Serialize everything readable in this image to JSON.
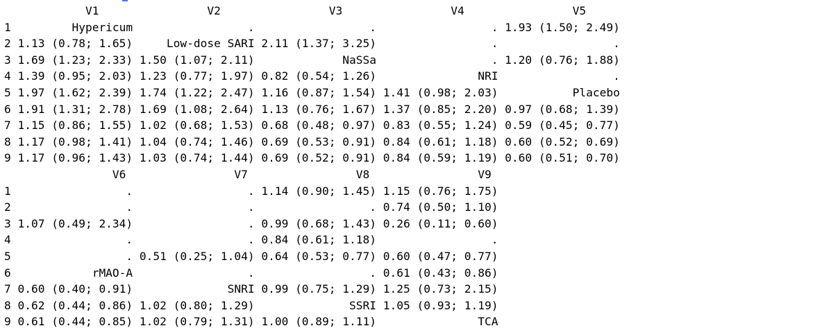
{
  "console": {
    "blocks": [
      {
        "header": "            V1                V2                V3                V4                V5",
        "rows": [
          "1         Hypericum                 .                 .                 . 1.93 (1.50; 2.49)",
          "2 1.13 (0.78; 1.65)     Low-dose SARI 2.11 (1.37; 3.25)                 .                 .",
          "3 1.69 (1.23; 2.33) 1.50 (1.07; 2.11)             NaSSa                 . 1.20 (0.76; 1.88)",
          "4 1.39 (0.95; 2.03) 1.23 (0.77; 1.97) 0.82 (0.54; 1.26)               NRI                 .",
          "5 1.97 (1.62; 2.39) 1.74 (1.22; 2.47) 1.16 (0.87; 1.54) 1.41 (0.98; 2.03)           Placebo",
          "6 1.91 (1.31; 2.78) 1.69 (1.08; 2.64) 1.13 (0.76; 1.67) 1.37 (0.85; 2.20) 0.97 (0.68; 1.39)",
          "7 1.15 (0.86; 1.55) 1.02 (0.68; 1.53) 0.68 (0.48; 0.97) 0.83 (0.55; 1.24) 0.59 (0.45; 0.77)",
          "8 1.17 (0.98; 1.41) 1.04 (0.74; 1.46) 0.69 (0.53; 0.91) 0.84 (0.61; 1.18) 0.60 (0.52; 0.69)",
          "9 1.17 (0.96; 1.43) 1.03 (0.74; 1.44) 0.69 (0.52; 0.91) 0.84 (0.59; 1.19) 0.60 (0.51; 0.70)"
        ]
      },
      {
        "header": "                V6                V7                V8                V9",
        "rows": [
          "1                 .                 . 1.14 (0.90; 1.45) 1.15 (0.76; 1.75)",
          "2                 .                 .                 . 0.74 (0.50; 1.10)",
          "3 1.07 (0.49; 2.34)                 . 0.99 (0.68; 1.43) 0.26 (0.11; 0.60)",
          "4                 .                 . 0.84 (0.61; 1.18)                 .",
          "5                 . 0.51 (0.25; 1.04) 0.64 (0.53; 0.77) 0.60 (0.47; 0.77)",
          "6            rMAO-A                 .                 . 0.61 (0.43; 0.86)",
          "7 0.60 (0.40; 0.91)              SNRI 0.99 (0.75; 1.29) 1.25 (0.73; 2.15)",
          "8 0.62 (0.44; 0.86) 1.02 (0.80; 1.29)              SSRI 1.05 (0.93; 1.19)",
          "9 0.61 (0.44; 0.85) 1.02 (0.79; 1.31) 1.00 (0.89; 1.11)               TCA"
        ]
      }
    ]
  }
}
